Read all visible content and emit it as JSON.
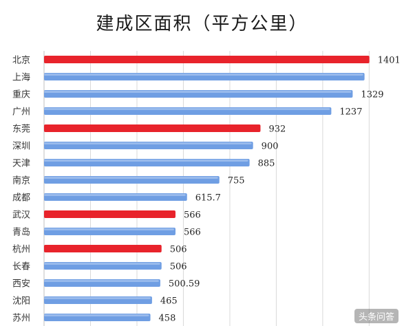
{
  "chart_data": {
    "type": "bar",
    "orientation": "horizontal",
    "title": "建成区面积（平方公里）",
    "xlabel": "",
    "ylabel": "",
    "xlim": [
      0,
      1470
    ],
    "grid": true,
    "legend": "none",
    "categories": [
      "北京",
      "上海",
      "重庆",
      "广州",
      "东莞",
      "深圳",
      "天津",
      "南京",
      "成都",
      "武汉",
      "青岛",
      "杭州",
      "长春",
      "西安",
      "沈阳",
      "苏州"
    ],
    "values": [
      1401,
      1380,
      1329,
      1237,
      932,
      900,
      885,
      755,
      615.7,
      566,
      566,
      506,
      506,
      500.59,
      465,
      458
    ],
    "data_labels": [
      "1401",
      "",
      "1329",
      "1237",
      "932",
      "900",
      "885",
      "755",
      "615.7",
      "566",
      "566",
      "506",
      "506",
      "500.59",
      "465",
      "458"
    ],
    "highlighted": [
      true,
      false,
      false,
      false,
      true,
      false,
      false,
      false,
      false,
      true,
      false,
      true,
      false,
      false,
      false,
      false
    ],
    "colors": {
      "highlight": "#e8232b",
      "normal": "#6f9ee3",
      "grid": "#d9d9d9"
    }
  },
  "watermark": "头条问答"
}
